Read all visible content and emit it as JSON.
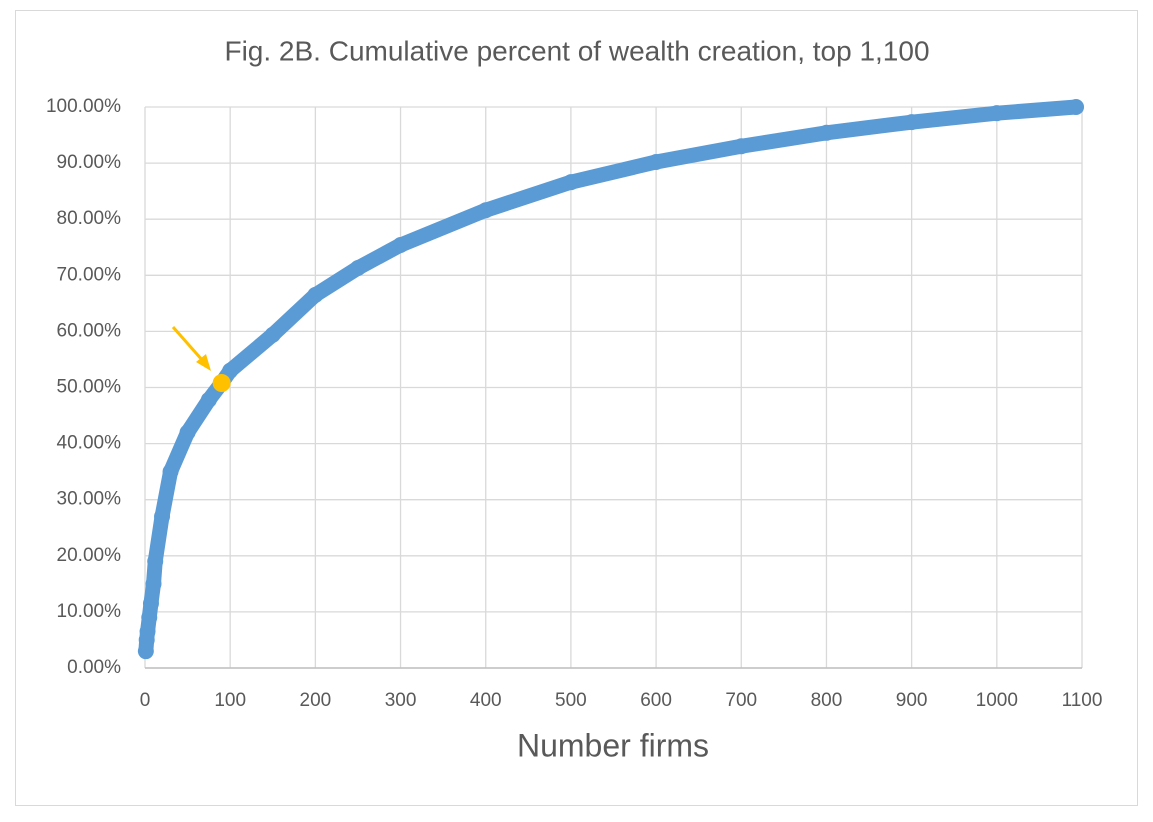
{
  "chart_data": {
    "type": "scatter",
    "title": "Fig. 2B. Cumulative percent of wealth creation, top 1,100",
    "x_label": "Number firms",
    "series": [
      {
        "color": "#5b9bd5",
        "x": [
          1,
          2,
          3,
          5,
          7,
          10,
          12,
          20,
          30,
          50,
          75,
          90,
          100,
          150,
          200,
          250,
          300,
          400,
          500,
          600,
          700,
          800,
          900,
          1000,
          1093
        ],
        "values": [
          3,
          5,
          6.5,
          9,
          11.5,
          15,
          19,
          27,
          35,
          42,
          47.8,
          50.8,
          53,
          59.4,
          66.5,
          71.3,
          75.4,
          81.6,
          86.6,
          90.2,
          93,
          95.4,
          97.3,
          98.9,
          100
        ]
      }
    ],
    "highlight": {
      "x": 90,
      "y": 50.8,
      "color": "#ffc000"
    },
    "xlim": [
      0,
      1100
    ],
    "xticks": [
      0,
      100,
      200,
      300,
      400,
      500,
      600,
      700,
      800,
      900,
      1000,
      1100
    ],
    "ylim": [
      0,
      100
    ],
    "yticks": [
      {
        "value": 0,
        "label": "0.00%"
      },
      {
        "value": 10,
        "label": "10.00%"
      },
      {
        "value": 20,
        "label": "20.00%"
      },
      {
        "value": 30,
        "label": "30.00%"
      },
      {
        "value": 40,
        "label": "40.00%"
      },
      {
        "value": 50,
        "label": "50.00%"
      },
      {
        "value": 60,
        "label": "60.00%"
      },
      {
        "value": 70,
        "label": "70.00%"
      },
      {
        "value": 80,
        "label": "80.00%"
      },
      {
        "value": 90,
        "label": "90.00%"
      },
      {
        "value": 100,
        "label": "100.00%"
      }
    ],
    "grid": true
  }
}
